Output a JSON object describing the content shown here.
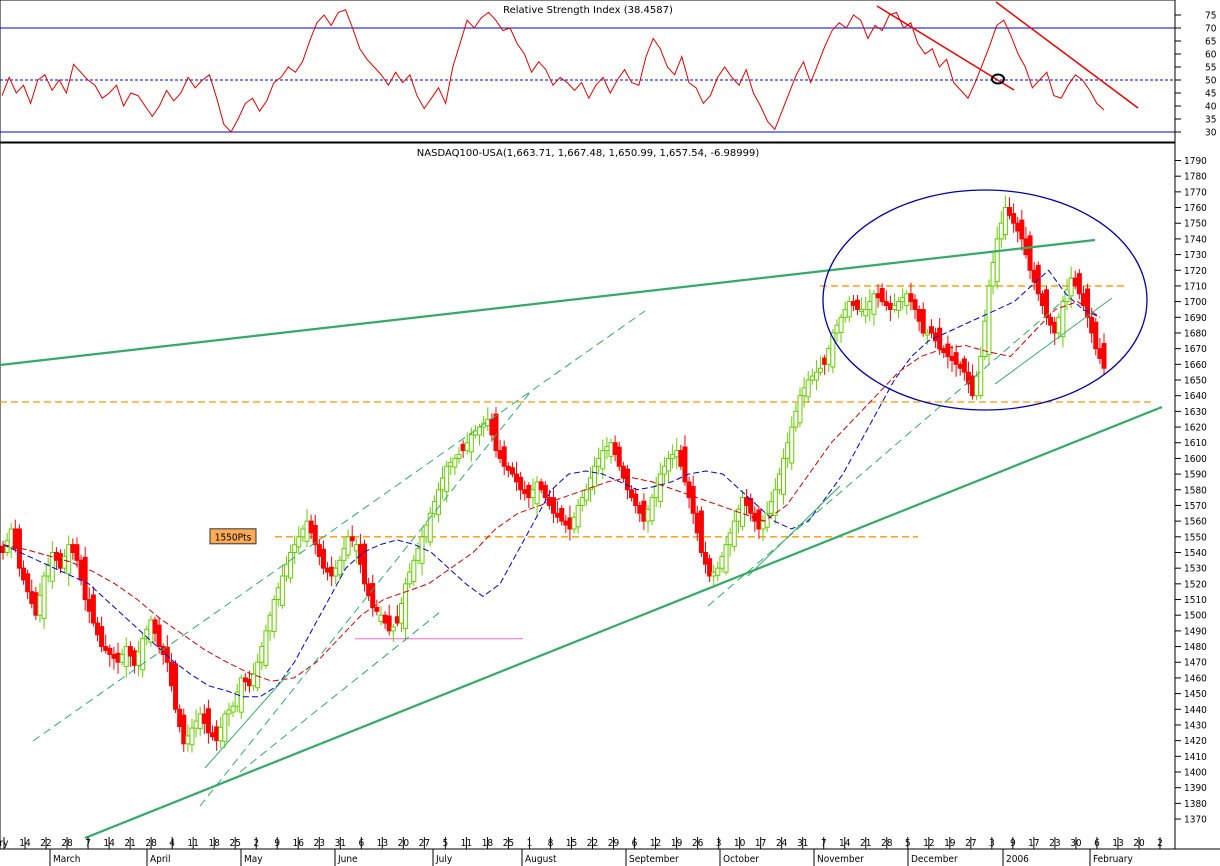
{
  "chart_data": [
    {
      "type": "line",
      "title": "Relative Strength Index (38.4587)",
      "ylim": [
        30,
        79
      ],
      "y_ticks": [
        30,
        35,
        40,
        45,
        50,
        55,
        60,
        65,
        70,
        75
      ],
      "reference_lines": [
        70,
        50,
        30
      ],
      "series": [
        {
          "values": [
            44,
            51,
            45,
            48,
            41,
            50,
            52,
            46,
            50,
            45,
            56,
            53,
            50,
            48,
            43,
            45,
            48,
            40,
            45,
            44,
            40,
            36,
            40,
            46,
            42,
            45,
            51,
            47,
            50,
            52,
            43,
            33,
            30,
            35,
            41,
            43,
            38,
            42,
            49,
            51,
            55,
            53,
            57,
            65,
            72,
            75,
            71,
            76,
            77,
            70,
            62,
            58,
            55,
            52,
            48,
            53,
            49,
            52,
            44,
            39,
            43,
            47,
            41,
            55,
            64,
            73,
            70,
            74,
            76,
            73,
            69,
            70,
            64,
            60,
            53,
            57,
            54,
            48,
            51,
            49,
            46,
            49,
            43,
            48,
            51,
            45,
            50,
            54,
            49,
            48,
            59,
            66,
            62,
            55,
            52,
            59,
            49,
            47,
            41,
            44,
            51,
            55,
            51,
            48,
            54,
            45,
            40,
            34,
            31,
            38,
            45,
            52,
            57,
            49,
            56,
            63,
            69,
            72,
            70,
            75,
            73,
            66,
            71,
            69,
            75,
            76,
            70,
            72,
            64,
            60,
            62,
            55,
            58,
            49,
            46,
            43,
            49,
            56,
            63,
            71,
            73,
            67,
            60,
            55,
            47,
            50,
            53,
            44,
            43,
            48,
            52,
            50,
            46,
            41,
            38.5
          ],
          "color": "#e00000"
        }
      ]
    },
    {
      "type": "candlestick",
      "title": "NASDAQ100-USA(1,663.71, 1,667.48, 1,650.99, 1,657.54, -6.98999)",
      "ylim": [
        1360,
        1796
      ],
      "y_ticks": [
        1370,
        1380,
        1390,
        1400,
        1410,
        1420,
        1430,
        1440,
        1450,
        1460,
        1470,
        1480,
        1490,
        1500,
        1510,
        1520,
        1530,
        1540,
        1550,
        1560,
        1570,
        1580,
        1590,
        1600,
        1610,
        1620,
        1630,
        1640,
        1650,
        1660,
        1670,
        1680,
        1690,
        1700,
        1710,
        1720,
        1730,
        1740,
        1750,
        1760,
        1770,
        1780,
        1790
      ],
      "close_path": [
        1540,
        1555,
        1530,
        1515,
        1500,
        1525,
        1540,
        1530,
        1545,
        1535,
        1510,
        1495,
        1480,
        1475,
        1470,
        1480,
        1468,
        1485,
        1497,
        1480,
        1470,
        1440,
        1418,
        1428,
        1437,
        1425,
        1420,
        1437,
        1442,
        1460,
        1455,
        1470,
        1490,
        1510,
        1525,
        1540,
        1550,
        1560,
        1545,
        1530,
        1525,
        1535,
        1550,
        1545,
        1520,
        1505,
        1500,
        1490,
        1495,
        1520,
        1535,
        1550,
        1565,
        1580,
        1595,
        1600,
        1605,
        1615,
        1620,
        1625,
        1605,
        1595,
        1590,
        1580,
        1575,
        1585,
        1575,
        1565,
        1560,
        1555,
        1570,
        1580,
        1595,
        1605,
        1610,
        1595,
        1580,
        1570,
        1560,
        1575,
        1590,
        1600,
        1605,
        1585,
        1565,
        1540,
        1525,
        1530,
        1545,
        1560,
        1575,
        1565,
        1555,
        1565,
        1580,
        1600,
        1620,
        1640,
        1650,
        1655,
        1660,
        1680,
        1690,
        1700,
        1695,
        1695,
        1705,
        1700,
        1695,
        1700,
        1705,
        1695,
        1680,
        1680,
        1670,
        1665,
        1660,
        1655,
        1640,
        1665,
        1710,
        1740,
        1760,
        1750,
        1740,
        1720,
        1705,
        1690,
        1680,
        1700,
        1715,
        1705,
        1690,
        1670,
        1657.54
      ],
      "series": [
        {
          "name": "",
          "color": "#0000cc",
          "style": "dashed",
          "values": [
            1545,
            1540,
            1535,
            1530,
            1525,
            1520,
            1510,
            1500,
            1490,
            1480,
            1470,
            1462,
            1455,
            1452,
            1448,
            1448,
            1455,
            1470,
            1490,
            1510,
            1530,
            1540,
            1545,
            1548,
            1545,
            1540,
            1530,
            1520,
            1512,
            1520,
            1540,
            1560,
            1580,
            1590,
            1592,
            1590,
            1585,
            1580,
            1582,
            1585,
            1590,
            1592,
            1590,
            1580,
            1570,
            1560,
            1555,
            1560,
            1575,
            1590,
            1610,
            1630,
            1650,
            1665,
            1675,
            1680,
            1685,
            1690,
            1695,
            1700,
            1710,
            1720,
            1705,
            1695,
            1690
          ]
        },
        {
          "name": "",
          "color": "#cc0000",
          "style": "dashed",
          "values": [
            1545,
            1542,
            1538,
            1534,
            1528,
            1520,
            1510,
            1498,
            1488,
            1478,
            1470,
            1463,
            1458,
            1460,
            1470,
            1485,
            1500,
            1510,
            1515,
            1520,
            1530,
            1540,
            1555,
            1565,
            1570,
            1575,
            1580,
            1585,
            1588,
            1585,
            1580,
            1575,
            1570,
            1565,
            1560,
            1570,
            1590,
            1610,
            1625,
            1640,
            1655,
            1665,
            1670,
            1672,
            1668,
            1665,
            1680,
            1695,
            1700,
            1690
          ]
        }
      ],
      "horizontal_levels": [
        {
          "value": 1710,
          "color": "#ff9900",
          "style": "dashed"
        },
        {
          "value": 1636,
          "color": "#ff9900",
          "style": "dashed"
        },
        {
          "value": 1550,
          "color": "#ff9900",
          "style": "dashed",
          "label": "1550Pts"
        },
        {
          "value": 1485,
          "color": "#ff66cc",
          "style": "solid"
        }
      ]
    }
  ],
  "x_axis": {
    "ticks": [
      "ry",
      "14",
      "22",
      "28",
      "7",
      "14",
      "21",
      "28",
      "4",
      "11",
      "18",
      "25",
      "2",
      "9",
      "16",
      "23",
      "31",
      "6",
      "13",
      "20",
      "27",
      "5",
      "11",
      "18",
      "25",
      "1",
      "8",
      "15",
      "22",
      "29",
      "6",
      "12",
      "19",
      "26",
      "3",
      "10",
      "17",
      "24",
      "31",
      "7",
      "14",
      "21",
      "28",
      "5",
      "12",
      "19",
      "27",
      "3",
      "9",
      "17",
      "23",
      "30",
      "6",
      "13",
      "20",
      "2"
    ],
    "months": [
      "March",
      "April",
      "May",
      "June",
      "July",
      "August",
      "September",
      "October",
      "November",
      "December",
      "2006",
      "February"
    ]
  },
  "colors": {
    "up_candle": "#66cc00",
    "down_candle": "#ff0000",
    "trend_green": "#33aa66",
    "annotation_blue": "#0000aa",
    "annotation_red": "#ee0000",
    "grid_blue": "#0000cc",
    "label_box": "#ffaa55"
  }
}
